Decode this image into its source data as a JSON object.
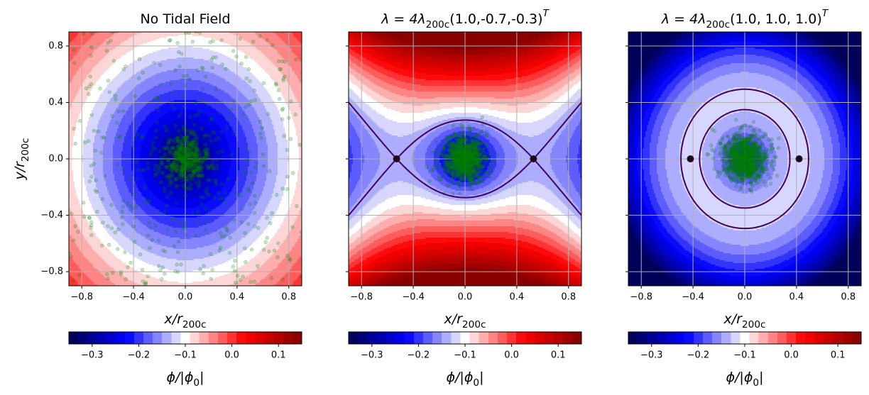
{
  "chart_data": [
    {
      "type": "contour",
      "title": "No Tidal Field",
      "xlabel": {
        "main": "x/r",
        "sub": "200c"
      },
      "ylabel": {
        "main": "y/r",
        "sub": "200c"
      },
      "xlim": [
        -0.9,
        0.9
      ],
      "ylim": [
        -0.9,
        0.9
      ],
      "xticks": [
        {
          "value": -0.8,
          "label": "−0.8"
        },
        {
          "value": -0.4,
          "label": "−0.4"
        },
        {
          "value": 0,
          "label": "0.0"
        },
        {
          "value": 0.4,
          "label": "0.4"
        },
        {
          "value": 0.8,
          "label": "0.8"
        }
      ],
      "yticks": [
        {
          "value": -0.8,
          "label": "−0.8"
        },
        {
          "value": -0.4,
          "label": "−0.4"
        },
        {
          "value": 0,
          "label": "0.0"
        },
        {
          "value": 0.4,
          "label": "0.4"
        },
        {
          "value": 0.8,
          "label": "0.8"
        }
      ],
      "grid": true,
      "colorbar": {
        "label": {
          "main": "ϕ/|ϕ",
          "sub": "0",
          "end": "|"
        },
        "lim": [
          -0.35,
          0.15
        ],
        "colormap": "seismic",
        "ticks": [
          {
            "value": -0.3,
            "label": "−0.3"
          },
          {
            "value": -0.2,
            "label": "−0.2"
          },
          {
            "value": -0.1,
            "label": "−0.1"
          },
          {
            "value": 0,
            "label": "0.0"
          },
          {
            "value": 0.1,
            "label": "0.1"
          }
        ]
      }
    },
    {
      "type": "contour",
      "title": {
        "main": "λ = 4λ",
        "sub": "200c",
        "args": "(1.0,-0.7,-0.3)",
        "sup": "T"
      },
      "xlabel": {
        "main": "x/r",
        "sub": "200c"
      },
      "xlim": [
        -0.9,
        0.9
      ],
      "ylim": [
        -0.9,
        0.9
      ],
      "xticks": [
        {
          "value": -0.8,
          "label": "−0.8"
        },
        {
          "value": -0.4,
          "label": "−0.4"
        },
        {
          "value": 0,
          "label": "0.0"
        },
        {
          "value": 0.4,
          "label": "0.4"
        },
        {
          "value": 0.8,
          "label": "0.8"
        }
      ],
      "yticks": [
        -0.8,
        -0.4,
        0,
        0.4,
        0.8
      ],
      "grid": true,
      "colorbar": {
        "label": {
          "main": "ϕ/|ϕ",
          "sub": "0",
          "end": "|"
        },
        "lim": [
          -0.35,
          0.15
        ],
        "colormap": "seismic",
        "ticks": [
          {
            "value": -0.3,
            "label": "−0.3"
          },
          {
            "value": -0.2,
            "label": "−0.2"
          },
          {
            "value": -0.1,
            "label": "−0.1"
          },
          {
            "value": 0,
            "label": "0.0"
          },
          {
            "value": 0.1,
            "label": "0.1"
          }
        ]
      }
    },
    {
      "type": "contour",
      "title": {
        "main": "λ = 4λ",
        "sub": "200c",
        "args": "(1.0, 1.0, 1.0)",
        "sup": "T"
      },
      "xlabel": {
        "main": "x/r",
        "sub": "200c"
      },
      "xlim": [
        -0.9,
        0.9
      ],
      "ylim": [
        -0.9,
        0.9
      ],
      "xticks": [
        {
          "value": -0.8,
          "label": "−0.8"
        },
        {
          "value": -0.4,
          "label": "−0.4"
        },
        {
          "value": 0,
          "label": "0.0"
        },
        {
          "value": 0.4,
          "label": "0.4"
        },
        {
          "value": 0.8,
          "label": "0.8"
        }
      ],
      "yticks": [
        -0.8,
        -0.4,
        0,
        0.4,
        0.8
      ],
      "grid": true,
      "colorbar": {
        "label": {
          "main": "ϕ/|ϕ",
          "sub": "0",
          "end": "|"
        },
        "lim": [
          -0.35,
          0.15
        ],
        "colormap": "seismic",
        "ticks": [
          {
            "value": -0.3,
            "label": "−0.3"
          },
          {
            "value": -0.2,
            "label": "−0.2"
          },
          {
            "value": -0.1,
            "label": "−0.1"
          },
          {
            "value": 0,
            "label": "0.0"
          },
          {
            "value": 0.1,
            "label": "0.1"
          }
        ]
      }
    }
  ]
}
